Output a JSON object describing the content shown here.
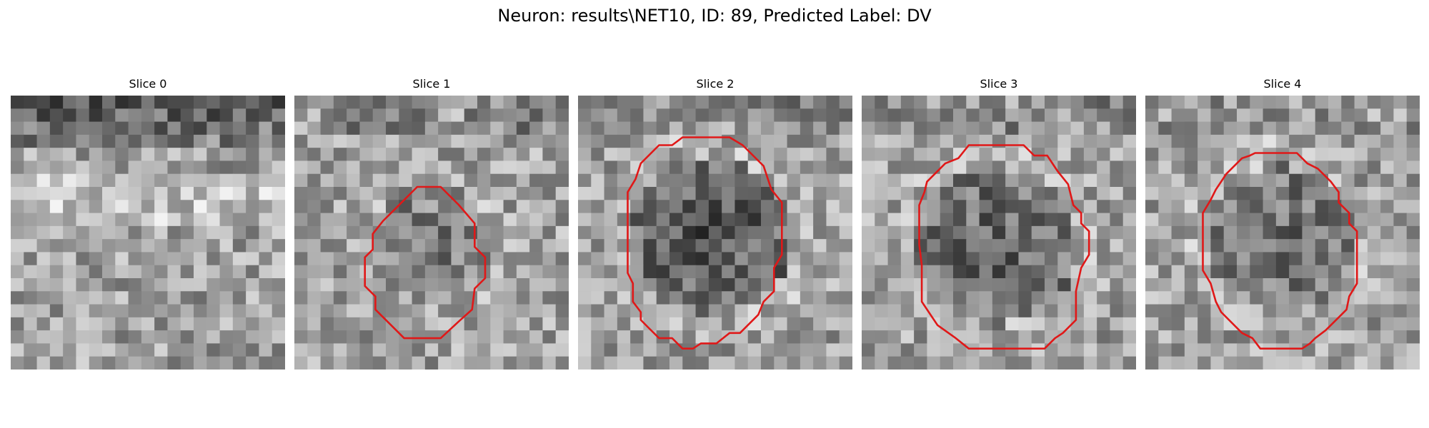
{
  "figure": {
    "title": "Neuron: results\\NET10, ID: 89, Predicted Label: DV",
    "contour_color": "#e01818",
    "grid_cells": 21
  },
  "slices": [
    {
      "label": "Slice 0",
      "has_contour": false
    },
    {
      "label": "Slice 1",
      "has_contour": true
    },
    {
      "label": "Slice 2",
      "has_contour": true
    },
    {
      "label": "Slice 3",
      "has_contour": true
    },
    {
      "label": "Slice 4",
      "has_contour": true
    }
  ]
}
